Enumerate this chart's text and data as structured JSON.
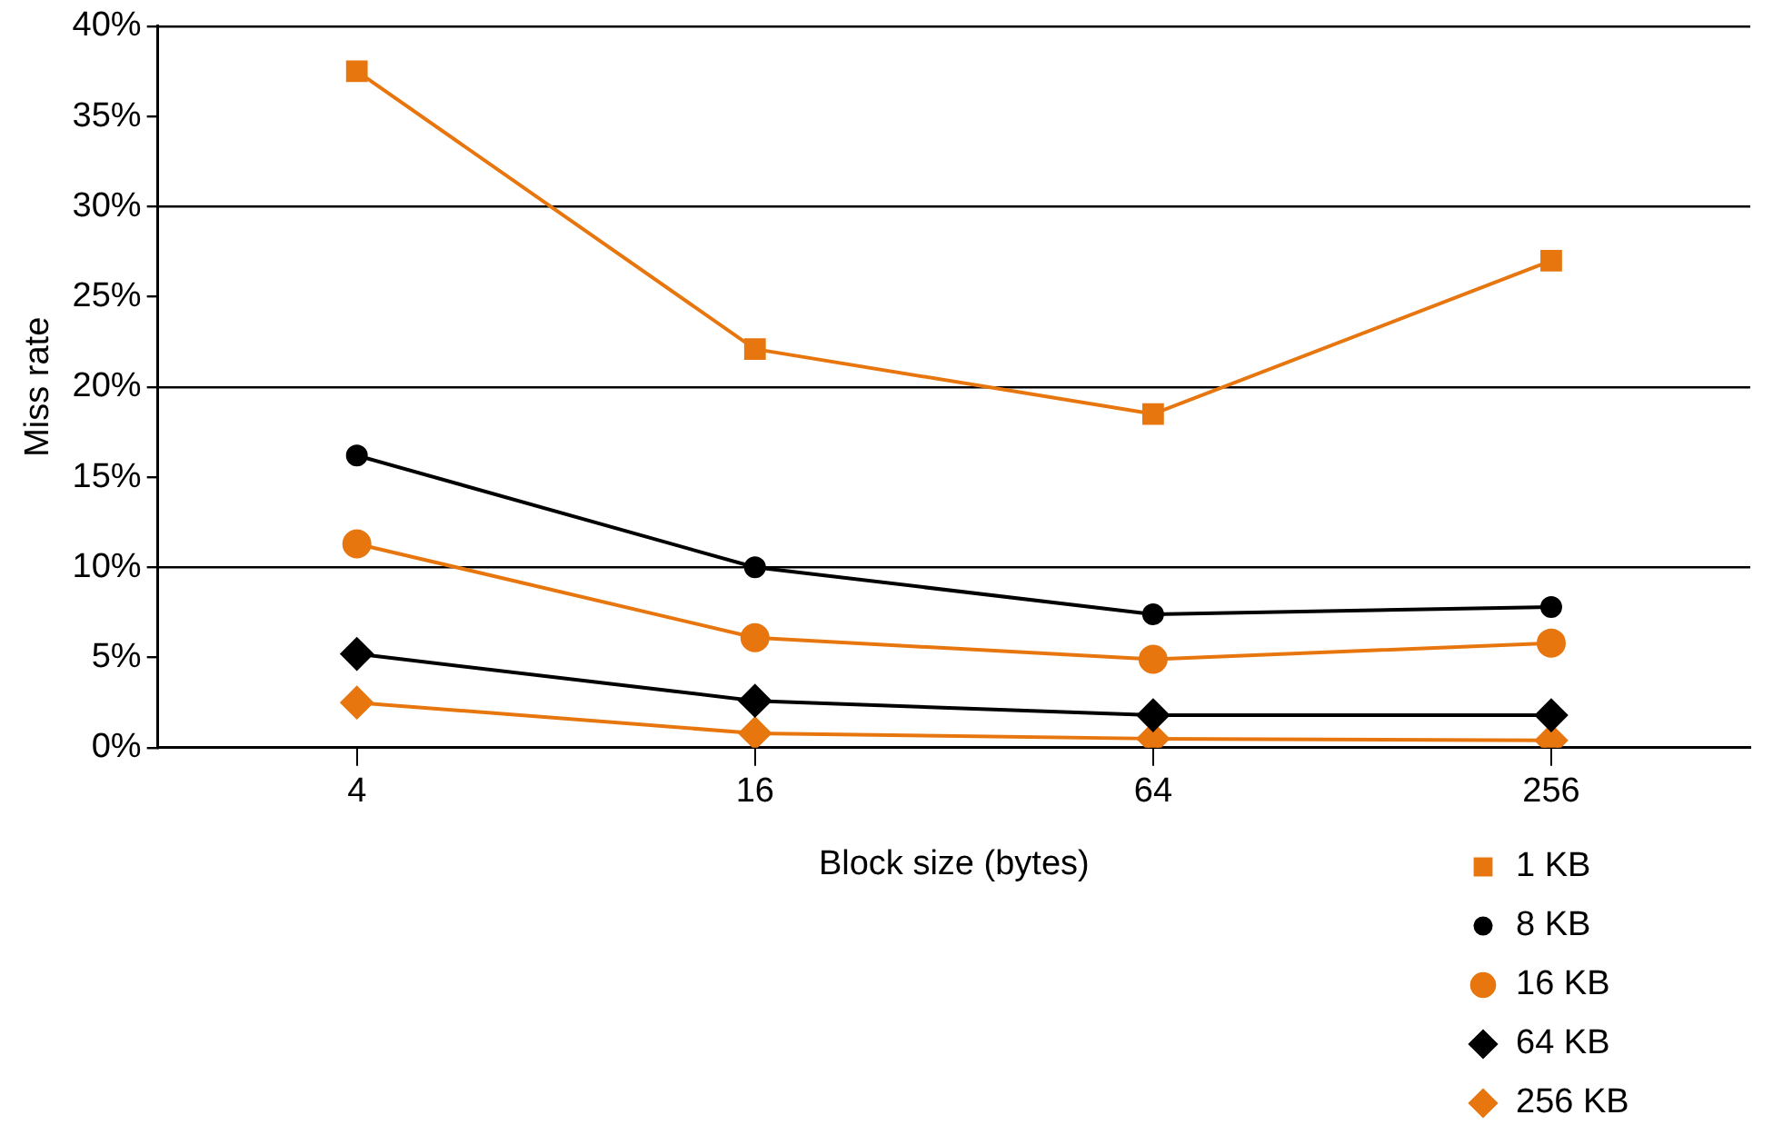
{
  "chart_data": {
    "type": "line",
    "xlabel": "Block size (bytes)",
    "ylabel": "Miss rate",
    "categories": [
      "4",
      "16",
      "64",
      "256"
    ],
    "ylim": [
      0,
      40
    ],
    "yticks": [
      {
        "value": 0,
        "label": "0%"
      },
      {
        "value": 5,
        "label": "5%"
      },
      {
        "value": 10,
        "label": "10%"
      },
      {
        "value": 15,
        "label": "15%"
      },
      {
        "value": 20,
        "label": "20%"
      },
      {
        "value": 25,
        "label": "25%"
      },
      {
        "value": 30,
        "label": "30%"
      },
      {
        "value": 35,
        "label": "35%"
      },
      {
        "value": 40,
        "label": "40%"
      }
    ],
    "grid": "y",
    "legend": "bottom right",
    "line_style": "solid",
    "series": [
      {
        "name": "1 KB",
        "color": "#e8760f",
        "marker": "square",
        "values": [
          37.5,
          22.1,
          18.5,
          27.0
        ]
      },
      {
        "name": "8 KB",
        "color": "#000000",
        "marker": "circle",
        "values": [
          16.2,
          10.0,
          7.4,
          7.8
        ]
      },
      {
        "name": "16 KB",
        "color": "#e8760f",
        "marker": "circle",
        "values": [
          11.3,
          6.1,
          4.9,
          5.8
        ]
      },
      {
        "name": "64 KB",
        "color": "#000000",
        "marker": "diamond",
        "values": [
          5.2,
          2.6,
          1.8,
          1.8
        ]
      },
      {
        "name": "256 KB",
        "color": "#e8760f",
        "marker": "diamond",
        "values": [
          2.5,
          0.8,
          0.5,
          0.4
        ]
      }
    ]
  }
}
